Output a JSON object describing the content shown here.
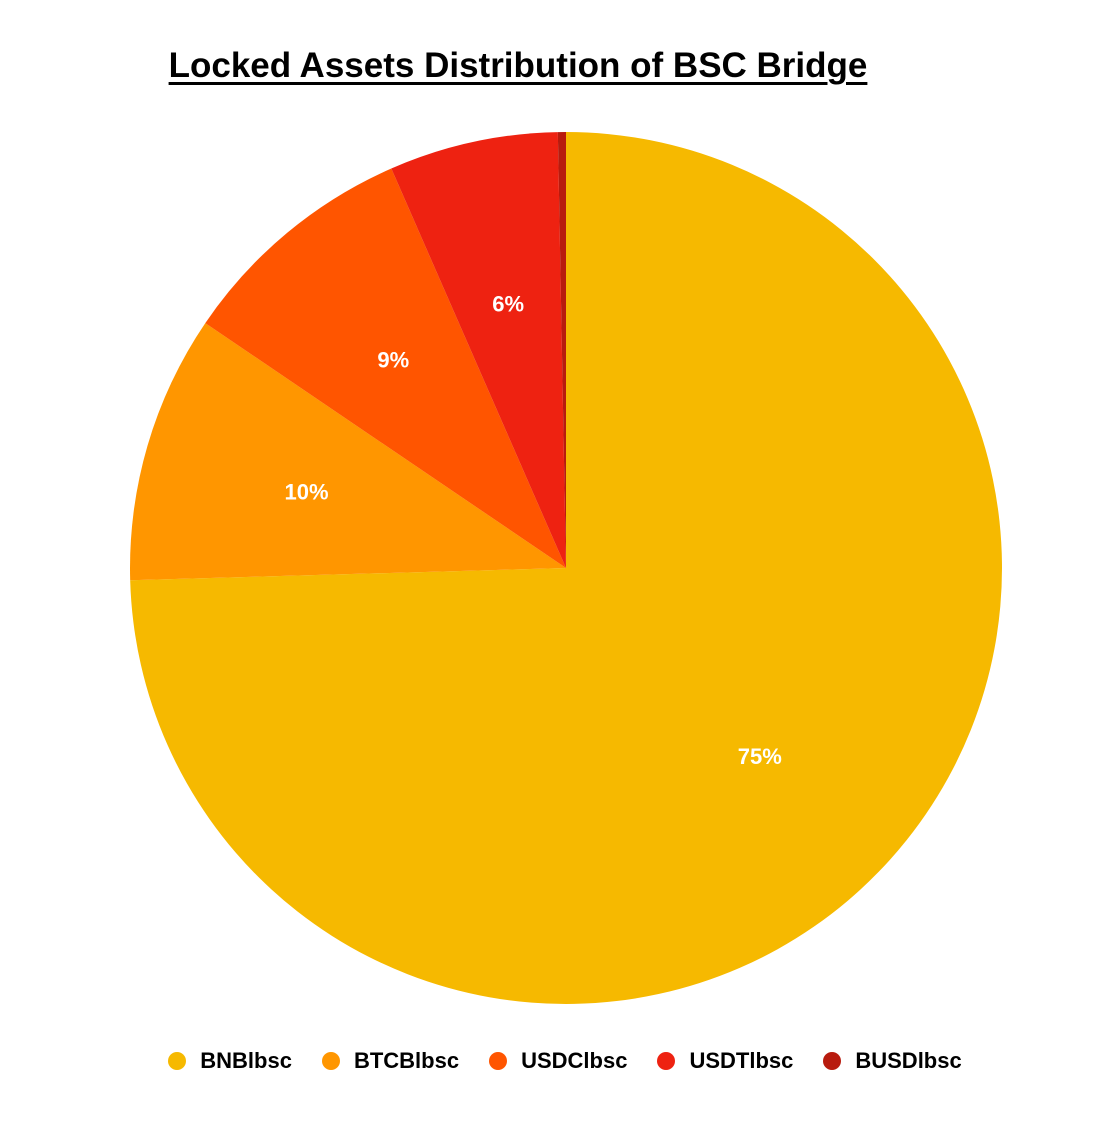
{
  "chart_data": {
    "type": "pie",
    "title": "Locked Assets Distribution of BSC Bridge",
    "slices": [
      {
        "name": "BNBlbsc",
        "value": 75.0,
        "label": "75%",
        "color": "#f6b900"
      },
      {
        "name": "BTCBlbsc",
        "value": 10.0,
        "label": "10%",
        "color": "#ff9600"
      },
      {
        "name": "USDClbsc",
        "value": 9.0,
        "label": "9%",
        "color": "#ff5500"
      },
      {
        "name": "USDTlbsc",
        "value": 6.3,
        "label": "6%",
        "color": "#ee2211"
      },
      {
        "name": "BUSDlbsc",
        "value": 0.3,
        "label": "",
        "color": "#b81b0e"
      }
    ],
    "legend_position": "bottom"
  }
}
